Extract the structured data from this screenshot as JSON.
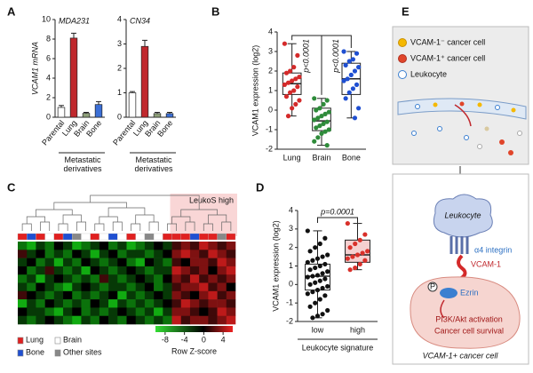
{
  "chart_data": [
    {
      "type": "bar",
      "panel": "A",
      "title": "MDA231",
      "ylabel": "VCAM1 mRNA",
      "categories": [
        "Parental",
        "Lung",
        "Brain",
        "Bone"
      ],
      "values": [
        1,
        8.1,
        0.4,
        1.3
      ],
      "errors": [
        0.2,
        0.5,
        0.1,
        0.3
      ],
      "colors": [
        "#ffffff",
        "#c0282d",
        "#8fa07a",
        "#3b6fd6"
      ],
      "ylim": [
        0,
        10
      ],
      "yticks": [
        0,
        2,
        4,
        6,
        8,
        10
      ],
      "group_label": "Metastatic derivatives"
    },
    {
      "type": "bar",
      "title": "CN34",
      "categories": [
        "Parental",
        "Lung",
        "Brain",
        "Bone"
      ],
      "values": [
        1,
        2.9,
        0.15,
        0.15
      ],
      "errors": [
        0.05,
        0.25,
        0.05,
        0.05
      ],
      "colors": [
        "#ffffff",
        "#c0282d",
        "#8fa07a",
        "#3b6fd6"
      ],
      "ylim": [
        0,
        4
      ],
      "yticks": [
        0,
        1,
        2,
        3,
        4
      ],
      "group_label": "Metastatic derivatives"
    },
    {
      "type": "box",
      "panel": "B",
      "ylabel": "VCAM1 expression (log2)",
      "categories": [
        "Lung",
        "Brain",
        "Bone"
      ],
      "colors": [
        "#d42a2a",
        "#2e8b3a",
        "#1f4fd1"
      ],
      "points": [
        [
          3.4,
          2.8,
          2.2,
          2.0,
          1.9,
          1.7,
          1.6,
          1.5,
          1.4,
          1.3,
          1.2,
          1.0,
          0.9,
          0.7,
          0.5,
          0.3,
          0.1,
          -0.3
        ],
        [
          0.6,
          0.5,
          0.3,
          0.1,
          0,
          -0.1,
          -0.2,
          -0.3,
          -0.4,
          -0.5,
          -0.6,
          -0.7,
          -0.8,
          -0.9,
          -1.0,
          -1.1,
          -1.2,
          -1.4,
          -1.6,
          -1.8
        ],
        [
          3.0,
          2.9,
          2.6,
          2.5,
          2.3,
          2.2,
          2.0,
          1.8,
          1.6,
          1.5,
          1.3,
          1.1,
          0.9,
          0.6,
          0.1,
          -0.4
        ]
      ],
      "boxes": [
        {
          "min": -0.3,
          "q1": 0.8,
          "median": 1.35,
          "q3": 1.9,
          "max": 3.4
        },
        {
          "min": -1.8,
          "q1": -1.05,
          "median": -0.55,
          "q3": 0.1,
          "max": 0.6
        },
        {
          "min": -0.4,
          "q1": 0.8,
          "median": 1.6,
          "q3": 2.4,
          "max": 3.0
        }
      ],
      "box_fills": [
        "#ffffff",
        "#ffffff",
        "#ffffff"
      ],
      "ylim": [
        -2,
        4
      ],
      "yticks": [
        -2,
        -1,
        0,
        1,
        2,
        3,
        4
      ],
      "annotations": [
        "p<0.0001",
        "p<0.0001"
      ]
    },
    {
      "type": "heatmap",
      "panel": "C",
      "annotation": "LeukoS high",
      "site_legend": [
        {
          "name": "Lung",
          "color": "#e02020"
        },
        {
          "name": "Brain",
          "color": "#ffffff"
        },
        {
          "name": "Bone",
          "color": "#1f4fd1"
        },
        {
          "name": "Other sites",
          "color": "#888888"
        }
      ],
      "sample_sites": [
        "Lung",
        "Bone",
        "Lung",
        "Brain",
        "Lung",
        "Bone",
        "Other sites",
        "Brain",
        "Lung",
        "Brain",
        "Bone",
        "Brain",
        "Lung",
        "Brain",
        "Other sites",
        "Brain",
        "Lung",
        "Lung",
        "Lung",
        "Bone",
        "Lung",
        "Lung",
        "Other sites",
        "Lung"
      ],
      "values": [
        [
          -2,
          -3,
          -1,
          -2,
          0,
          -1,
          -3,
          -2,
          -1,
          0,
          -2,
          -1,
          -3,
          -2,
          -1,
          0,
          -1,
          1,
          2,
          1,
          3,
          2,
          1,
          2
        ],
        [
          1,
          -1,
          0,
          -2,
          -1,
          -2,
          0,
          -1,
          -3,
          -1,
          0,
          -2,
          -1,
          -1,
          -2,
          -1,
          0,
          2,
          3,
          2,
          1,
          3,
          2,
          1
        ],
        [
          -1,
          0,
          -2,
          -1,
          -3,
          -1,
          -2,
          0,
          -1,
          -2,
          -1,
          0,
          -2,
          -3,
          0,
          -1,
          -2,
          1,
          0,
          2,
          2,
          1,
          3,
          2
        ],
        [
          0,
          -2,
          -1,
          1,
          -1,
          -2,
          -1,
          -3,
          0,
          -1,
          -2,
          -1,
          0,
          -1,
          -2,
          -1,
          -1,
          3,
          2,
          1,
          2,
          0,
          2,
          3
        ],
        [
          -2,
          -1,
          -3,
          -1,
          0,
          -1,
          -2,
          -1,
          -2,
          1,
          -1,
          -2,
          -1,
          0,
          -1,
          -2,
          0,
          2,
          1,
          3,
          1,
          2,
          1,
          2
        ],
        [
          -1,
          -2,
          0,
          -1,
          -2,
          -3,
          -1,
          0,
          -1,
          -2,
          -1,
          -1,
          -2,
          -1,
          0,
          -2,
          -1,
          1,
          2,
          2,
          3,
          1,
          2,
          0
        ],
        [
          1,
          0,
          -1,
          -2,
          -1,
          0,
          -2,
          -1,
          -2,
          -1,
          0,
          -3,
          -1,
          -2,
          -1,
          0,
          -1,
          2,
          1,
          0,
          2,
          3,
          1,
          2
        ],
        [
          -3,
          -1,
          -2,
          0,
          -1,
          -2,
          -1,
          -2,
          0,
          -1,
          -3,
          -1,
          -2,
          -1,
          -2,
          -1,
          0,
          1,
          3,
          2,
          1,
          2,
          2,
          1
        ],
        [
          0,
          -1,
          -1,
          -2,
          -3,
          -1,
          0,
          -2,
          -1,
          -2,
          -1,
          0,
          -1,
          -2,
          -1,
          -3,
          -1,
          2,
          2,
          1,
          0,
          1,
          3,
          2
        ],
        [
          -1,
          -2,
          -1,
          0,
          -1,
          -2,
          -3,
          -1,
          -2,
          0,
          -1,
          -2,
          0,
          -1,
          -2,
          -1,
          -2,
          3,
          1,
          2,
          2,
          1,
          2,
          3
        ]
      ],
      "clim": [
        -10,
        6
      ],
      "cticks": [
        -8,
        -4,
        0,
        4
      ],
      "colorbar_label": "Row Z-score"
    },
    {
      "type": "box",
      "panel": "D",
      "ylabel": "VCAM1 expression (log2)",
      "xlabel": "Leukocyte signature",
      "categories": [
        "low",
        "high"
      ],
      "colors": [
        "#111111",
        "#d9302a"
      ],
      "points": [
        [
          2.9,
          2.5,
          2.2,
          2.0,
          1.8,
          1.6,
          1.5,
          1.4,
          1.3,
          1.2,
          1.1,
          1.0,
          0.9,
          0.8,
          0.7,
          0.6,
          0.5,
          0.45,
          0.4,
          0.3,
          0.2,
          0.1,
          0,
          -0.1,
          -0.2,
          -0.3,
          -0.4,
          -0.5,
          -0.6,
          -0.8,
          -1.0,
          -1.2,
          -1.4,
          -1.6,
          -1.7,
          -1.8
        ],
        [
          3.3,
          2.7,
          2.4,
          2.2,
          2.0,
          1.8,
          1.7,
          1.6,
          1.5,
          1.4,
          1.3,
          1.1,
          0.9,
          0.8
        ]
      ],
      "boxes": [
        {
          "min": -1.8,
          "q1": -0.3,
          "median": 0.45,
          "q3": 1.1,
          "max": 2.9
        },
        {
          "min": 0.8,
          "q1": 1.2,
          "median": 1.6,
          "q3": 2.4,
          "max": 3.3
        }
      ],
      "box_fills": [
        "#ffffff",
        "#f5d0d0"
      ],
      "ylim": [
        -2,
        4
      ],
      "yticks": [
        -2,
        -1,
        0,
        1,
        2,
        3,
        4
      ],
      "annotations": [
        "p=0.0001"
      ]
    }
  ],
  "diagram": {
    "panel": "E",
    "legend": [
      {
        "name": "VCAM-1⁻ cancer cell",
        "color": "#f5b800"
      },
      {
        "name": "VCAM-1⁺ cancer cell",
        "color": "#e0452a"
      },
      {
        "name": "Leukocyte",
        "color": "#ffffff"
      }
    ],
    "leukocyte": "Leukocyte",
    "integrin": "α4 integrin",
    "vcam": "VCAM-1",
    "ezrin": "Ezrin",
    "phospho": "P",
    "signaling": [
      "PI3K/Akt activation",
      "Cancer cell survival"
    ],
    "cell": "VCAM-1+ cancer cell"
  }
}
